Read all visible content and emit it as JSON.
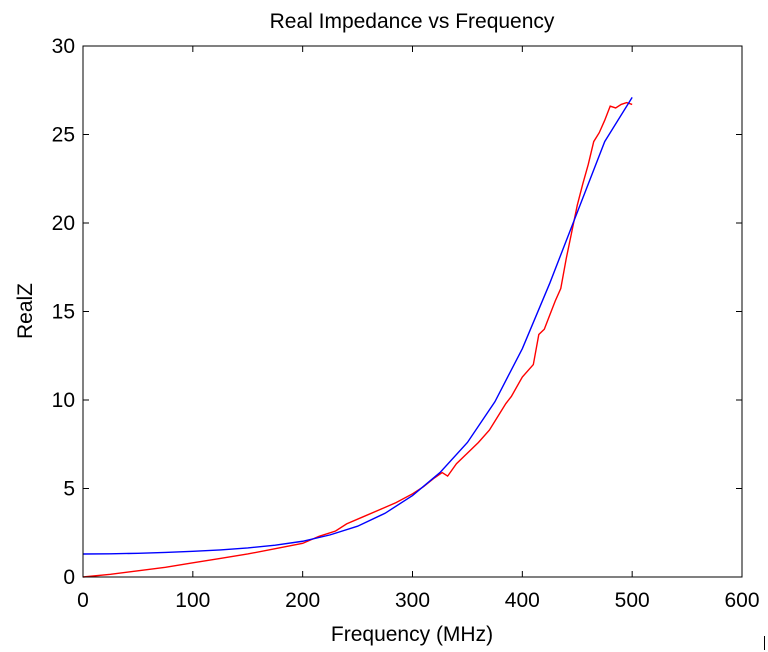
{
  "chart_data": {
    "type": "line",
    "title": "Real Impedance vs Frequency",
    "xlabel": "Frequency (MHz)",
    "ylabel": "RealZ",
    "xlim": [
      0,
      600
    ],
    "ylim": [
      0,
      30
    ],
    "xticks": [
      "0",
      "100",
      "200",
      "300",
      "400",
      "500",
      "600"
    ],
    "yticks": [
      "0",
      "5",
      "10",
      "15",
      "20",
      "25",
      "30"
    ],
    "grid": false,
    "legend": "none",
    "series": [
      {
        "color": "#ff0000",
        "x": [
          0,
          25,
          50,
          75,
          100,
          125,
          150,
          175,
          200,
          215,
          230,
          240,
          255,
          270,
          285,
          300,
          310,
          320,
          327,
          332,
          340,
          350,
          360,
          370,
          375,
          380,
          385,
          390,
          400,
          410,
          415,
          420,
          425,
          430,
          435,
          440,
          445,
          450,
          455,
          460,
          465,
          470,
          475,
          480,
          485,
          490,
          495,
          500
        ],
        "y": [
          0.0,
          0.15,
          0.35,
          0.55,
          0.8,
          1.05,
          1.3,
          1.6,
          1.9,
          2.3,
          2.6,
          3.0,
          3.4,
          3.8,
          4.2,
          4.7,
          5.1,
          5.6,
          5.9,
          5.7,
          6.4,
          7.0,
          7.6,
          8.3,
          8.8,
          9.3,
          9.8,
          10.2,
          11.3,
          12.0,
          13.7,
          14.0,
          14.8,
          15.6,
          16.3,
          18.0,
          19.5,
          21.0,
          22.2,
          23.3,
          24.6,
          25.1,
          25.8,
          26.6,
          26.5,
          26.7,
          26.8,
          26.7
        ]
      },
      {
        "color": "#0000ff",
        "x": [
          0,
          25,
          50,
          75,
          100,
          125,
          150,
          175,
          200,
          225,
          250,
          275,
          300,
          325,
          350,
          375,
          400,
          425,
          450,
          475,
          500
        ],
        "y": [
          1.3,
          1.31,
          1.34,
          1.39,
          1.45,
          1.53,
          1.64,
          1.8,
          2.02,
          2.38,
          2.87,
          3.6,
          4.6,
          5.9,
          7.6,
          9.9,
          12.9,
          16.6,
          20.6,
          24.6,
          27.1
        ]
      }
    ]
  }
}
